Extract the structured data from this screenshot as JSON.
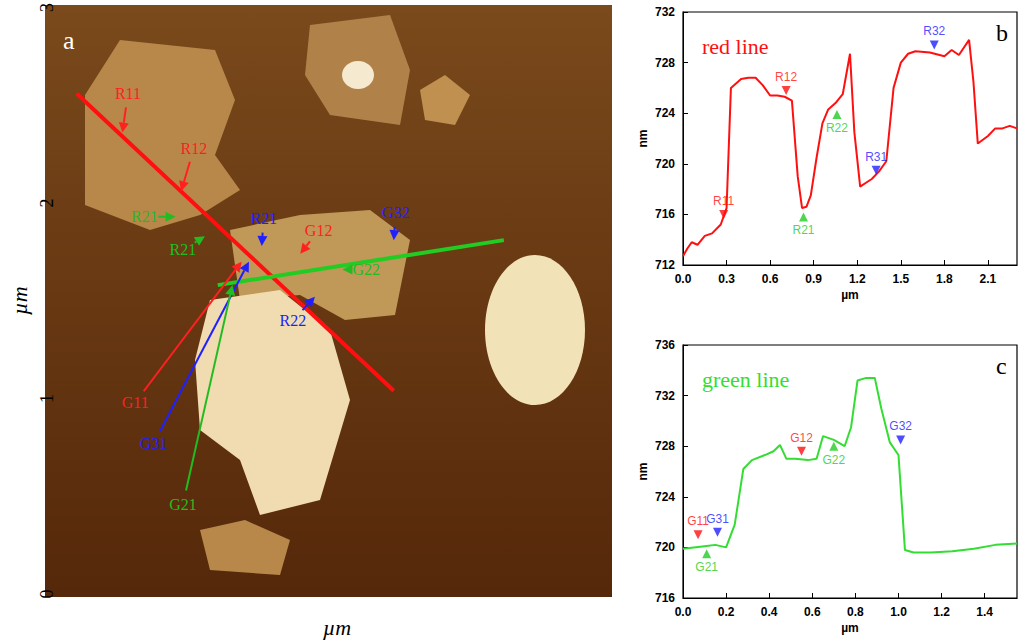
{
  "chart_data": [
    {
      "type": "image",
      "panel": "a",
      "xlabel": "µm",
      "ylabel": "µm",
      "xlim": [
        0,
        3
      ],
      "ylim": [
        0,
        3
      ],
      "yticks": [
        0,
        1,
        2,
        3
      ],
      "tick_labels": "y",
      "lines": [
        {
          "color": "#ff1010",
          "points": [
            [
              0.08,
              2.56
            ],
            [
              1.81,
              1.04
            ]
          ]
        },
        {
          "color": "#22cc22",
          "points": [
            [
              0.85,
              1.58
            ],
            [
              2.41,
              1.81
            ]
          ]
        }
      ],
      "annotations": [
        {
          "text": "R11",
          "color": "#ff2020",
          "x": 0.36,
          "y": 2.56,
          "target": [
            0.33,
            2.36
          ]
        },
        {
          "text": "R12",
          "color": "#ff2020",
          "x": 0.72,
          "y": 2.28,
          "target": [
            0.65,
            2.06
          ]
        },
        {
          "text": "R21",
          "color": "#22bb22",
          "x": 0.45,
          "y": 1.93,
          "target": [
            0.62,
            1.93
          ]
        },
        {
          "text": "R21",
          "color": "#22bb22",
          "x": 0.66,
          "y": 1.76,
          "target": [
            0.78,
            1.83
          ]
        },
        {
          "text": "R21",
          "color": "#2020ff",
          "x": 1.1,
          "y": 1.92,
          "target": [
            1.09,
            1.78
          ]
        },
        {
          "text": "G12",
          "color": "#ff2020",
          "x": 1.4,
          "y": 1.86,
          "target": [
            1.3,
            1.74
          ]
        },
        {
          "text": "G32",
          "color": "#2020ff",
          "x": 1.82,
          "y": 1.95,
          "target": [
            1.81,
            1.81
          ]
        },
        {
          "text": "G22",
          "color": "#22bb22",
          "x": 1.66,
          "y": 1.66,
          "target": [
            1.53,
            1.66
          ]
        },
        {
          "text": "R22",
          "color": "#2020ff",
          "x": 1.26,
          "y": 1.4,
          "target": [
            1.38,
            1.52
          ]
        },
        {
          "text": "G11",
          "color": "#ff2020",
          "x": 0.4,
          "y": 0.98,
          "target": [
            0.98,
            1.7
          ]
        },
        {
          "text": "G31",
          "color": "#2020ff",
          "x": 0.5,
          "y": 0.77,
          "target": [
            1.02,
            1.7
          ]
        },
        {
          "text": "G21",
          "color": "#22bb22",
          "x": 0.66,
          "y": 0.46,
          "target": [
            0.93,
            1.58
          ]
        }
      ]
    },
    {
      "type": "line",
      "panel": "b",
      "title": "red line",
      "xlabel": "µm",
      "ylabel": "nm",
      "x": [
        0,
        0.03,
        0.06,
        0.1,
        0.15,
        0.2,
        0.26,
        0.3,
        0.33,
        0.4,
        0.45,
        0.5,
        0.55,
        0.6,
        0.65,
        0.7,
        0.75,
        0.79,
        0.82,
        0.85,
        0.88,
        0.92,
        0.96,
        1.0,
        1.05,
        1.1,
        1.15,
        1.18,
        1.22,
        1.26,
        1.3,
        1.35,
        1.4,
        1.45,
        1.5,
        1.55,
        1.6,
        1.7,
        1.8,
        1.85,
        1.9,
        1.97,
        2.0,
        2.03,
        2.1,
        2.15,
        2.2,
        2.25,
        2.3
      ],
      "series": [
        {
          "color": "#ff1010",
          "values": [
            712.7,
            713.3,
            713.8,
            713.6,
            714.3,
            714.5,
            715.2,
            716.5,
            726.0,
            726.7,
            726.8,
            726.8,
            726.2,
            725.4,
            725.4,
            725.3,
            725.0,
            719.0,
            716.5,
            716.6,
            717.5,
            720.5,
            723.2,
            724.3,
            724.8,
            725.5,
            728.7,
            722.5,
            718.2,
            718.5,
            718.8,
            719.4,
            720.2,
            726.0,
            728.0,
            728.7,
            728.9,
            728.8,
            728.5,
            729.0,
            728.6,
            729.8,
            726.5,
            721.6,
            722.2,
            722.8,
            722.8,
            723.0,
            722.8
          ]
        }
      ],
      "xlim": [
        0,
        2.3
      ],
      "xticks": [
        {
          "value": 0,
          "label": "0.0"
        },
        0.3,
        0.6,
        0.9,
        1.2,
        1.5,
        1.8,
        2.1
      ],
      "ylim": [
        712,
        732
      ],
      "yticks": [
        712,
        716,
        720,
        724,
        728,
        732
      ],
      "markers": [
        {
          "text": "R11",
          "color": "#ff1010",
          "x": 0.28,
          "y": 716.0,
          "marker": "triangle-down"
        },
        {
          "text": "R12",
          "color": "#ff1010",
          "x": 0.71,
          "y": 725.8,
          "marker": "triangle-down"
        },
        {
          "text": "R21",
          "color": "#22cc22",
          "x": 0.83,
          "y": 715.8,
          "marker": "triangle-up"
        },
        {
          "text": "R22",
          "color": "#22cc22",
          "x": 1.06,
          "y": 723.9,
          "marker": "triangle-up"
        },
        {
          "text": "R31",
          "color": "#2020ff",
          "x": 1.33,
          "y": 719.5,
          "marker": "triangle-down"
        },
        {
          "text": "R32",
          "color": "#2020ff",
          "x": 1.73,
          "y": 729.4,
          "marker": "triangle-down"
        }
      ]
    },
    {
      "type": "line",
      "panel": "c",
      "title": "green line",
      "xlabel": "µm",
      "ylabel": "nm",
      "x": [
        0,
        0.05,
        0.1,
        0.15,
        0.2,
        0.24,
        0.28,
        0.32,
        0.38,
        0.42,
        0.45,
        0.48,
        0.52,
        0.58,
        0.62,
        0.65,
        0.7,
        0.75,
        0.78,
        0.81,
        0.85,
        0.89,
        0.92,
        0.96,
        1.0,
        1.03,
        1.07,
        1.15,
        1.25,
        1.35,
        1.45,
        1.55
      ],
      "series": [
        {
          "color": "#33dd33",
          "values": [
            719.9,
            720.0,
            720.1,
            720.2,
            720.0,
            721.8,
            726.2,
            726.9,
            727.3,
            727.6,
            728.1,
            727.0,
            727.0,
            726.9,
            727.0,
            728.8,
            728.5,
            728.0,
            729.5,
            733.2,
            733.4,
            733.4,
            731.0,
            728.3,
            727.3,
            719.8,
            719.6,
            719.6,
            719.7,
            719.9,
            720.2,
            720.3
          ]
        }
      ],
      "xlim": [
        0,
        1.55
      ],
      "xticks": [
        {
          "value": 0,
          "label": "0.0"
        },
        0.2,
        0.4,
        0.6,
        0.8,
        {
          "value": 1,
          "label": "1.0"
        },
        1.2,
        1.4
      ],
      "ylim": [
        716,
        736
      ],
      "yticks": [
        716,
        720,
        724,
        728,
        732,
        736
      ],
      "markers": [
        {
          "text": "G11",
          "color": "#ff1010",
          "x": 0.07,
          "y": 721.0,
          "marker": "triangle-down"
        },
        {
          "text": "G31",
          "color": "#2020ff",
          "x": 0.16,
          "y": 721.2,
          "marker": "triangle-down"
        },
        {
          "text": "G21",
          "color": "#22cc22",
          "x": 0.11,
          "y": 719.5,
          "marker": "triangle-up"
        },
        {
          "text": "G12",
          "color": "#ff1010",
          "x": 0.55,
          "y": 727.6,
          "marker": "triangle-down"
        },
        {
          "text": "G22",
          "color": "#22cc22",
          "x": 0.7,
          "y": 728.0,
          "marker": "triangle-up"
        },
        {
          "text": "G32",
          "color": "#2020ff",
          "x": 1.01,
          "y": 728.5,
          "marker": "triangle-down"
        }
      ]
    }
  ]
}
